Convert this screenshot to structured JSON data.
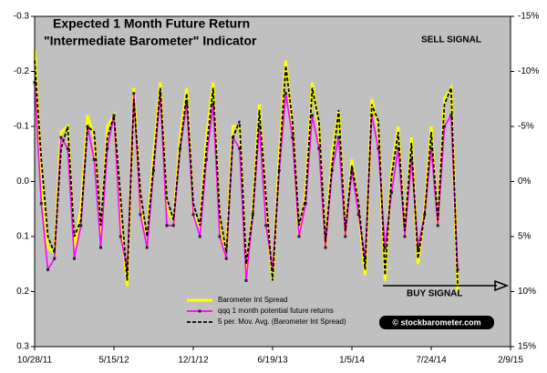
{
  "chart_data": {
    "type": "line",
    "title": "Expected 1 Month Future Return",
    "subtitle": "\"Intermediate Barometer\" Indicator",
    "annotations": [
      "SELL SIGNAL",
      "BUY SIGNAL",
      "© stockbarometer.com"
    ],
    "categories": [
      "10/28/11",
      null,
      null,
      null,
      null,
      null,
      null,
      null,
      null,
      null,
      null,
      null,
      "5/15/12",
      null,
      null,
      null,
      null,
      null,
      null,
      null,
      null,
      null,
      null,
      null,
      "12/1/12",
      null,
      null,
      null,
      null,
      null,
      null,
      null,
      null,
      null,
      null,
      null,
      "6/19/13",
      null,
      null,
      null,
      null,
      null,
      null,
      null,
      null,
      null,
      null,
      null,
      "1/5/14",
      null,
      null,
      null,
      null,
      null,
      null,
      null,
      null,
      null,
      null,
      null,
      "7/24/14",
      null,
      null,
      null,
      null,
      null,
      null,
      null,
      null,
      null,
      null,
      null,
      "2/9/15"
    ],
    "ylim": [
      -0.3,
      0.3
    ],
    "y_inverted": true,
    "yticks": [
      -0.3,
      -0.2,
      -0.1,
      {
        "value": 0,
        "label": "0.0"
      },
      0.1,
      0.2,
      0.3
    ],
    "y2lim": [
      -15,
      15
    ],
    "y2_inverted": true,
    "y2ticks": [
      {
        "value": -15,
        "label": "-15%"
      },
      {
        "value": -10,
        "label": "-10%"
      },
      {
        "value": -5,
        "label": "-5%"
      },
      {
        "value": 0,
        "label": "0%"
      },
      {
        "value": 5,
        "label": "5%"
      },
      {
        "value": 10,
        "label": "10%"
      },
      {
        "value": 15,
        "label": "15%"
      }
    ],
    "legend": "lower-center",
    "series": [
      {
        "name": "Barometer Int Spread",
        "color": "#ffff00",
        "style": "solid",
        "values": [
          -0.24,
          -0.02,
          0.12,
          0.13,
          -0.09,
          -0.1,
          0.12,
          0.05,
          -0.12,
          -0.08,
          0.1,
          -0.1,
          -0.12,
          0.06,
          0.19,
          -0.17,
          0.05,
          0.1,
          -0.05,
          -0.18,
          0.05,
          0.07,
          -0.08,
          -0.17,
          0.06,
          0.08,
          -0.08,
          -0.18,
          0.08,
          0.13,
          -0.1,
          -0.1,
          0.17,
          0.05,
          -0.14,
          0.05,
          0.18,
          -0.05,
          -0.22,
          -0.1,
          0.1,
          0.02,
          -0.18,
          -0.1,
          0.12,
          -0.05,
          -0.13,
          0.1,
          -0.04,
          0.05,
          0.17,
          -0.15,
          -0.1,
          0.18,
          -0.02,
          -0.1,
          0.1,
          -0.08,
          0.15,
          0.05,
          -0.1,
          0.08,
          -0.15,
          -0.17,
          0.2,
          null,
          null,
          null,
          null,
          null,
          null,
          null,
          null
        ]
      },
      {
        "name": "qqq 1 month potential future returns",
        "color": "#ff00ff",
        "style": "markers",
        "axis": "y2",
        "values": [
          -9,
          2,
          8,
          7,
          -4,
          -3,
          7,
          4,
          -5,
          -2,
          6,
          -3,
          -6,
          5,
          8,
          -8,
          3,
          6,
          -1,
          -8,
          4,
          4,
          -3,
          -7,
          3,
          5,
          -2,
          -7,
          5,
          7,
          -4,
          -3,
          9,
          3,
          -5,
          4,
          8,
          -1,
          -8,
          -4,
          5,
          2,
          -6,
          -3,
          6,
          -1,
          -4,
          5,
          -1,
          3,
          7,
          -6,
          -3,
          6,
          1,
          -3,
          5,
          -2,
          6,
          3,
          -3,
          4,
          -5,
          -6,
          8,
          null,
          null,
          null,
          null,
          null,
          null,
          null,
          null
        ]
      },
      {
        "name": "5 per. Mov. Avg. (Barometer Int Spread)",
        "color": "#000000",
        "style": "dashed",
        "values": [
          -0.22,
          -0.04,
          0.1,
          0.13,
          -0.06,
          -0.1,
          0.1,
          0.07,
          -0.1,
          -0.09,
          0.08,
          -0.08,
          -0.12,
          0.03,
          0.18,
          -0.15,
          0.02,
          0.1,
          -0.03,
          -0.17,
          0.03,
          0.07,
          -0.06,
          -0.16,
          0.04,
          0.08,
          -0.06,
          -0.17,
          0.06,
          0.13,
          -0.08,
          -0.11,
          0.15,
          0.06,
          -0.13,
          0.03,
          0.18,
          -0.03,
          -0.21,
          -0.11,
          0.08,
          0.03,
          -0.17,
          -0.11,
          0.11,
          -0.03,
          -0.13,
          0.09,
          -0.03,
          0.04,
          0.16,
          -0.14,
          -0.11,
          0.17,
          -0.01,
          -0.09,
          0.09,
          -0.07,
          0.14,
          0.06,
          -0.09,
          0.07,
          -0.14,
          -0.17,
          0.19,
          null,
          null,
          null,
          null,
          null,
          null,
          null,
          null
        ]
      }
    ]
  }
}
